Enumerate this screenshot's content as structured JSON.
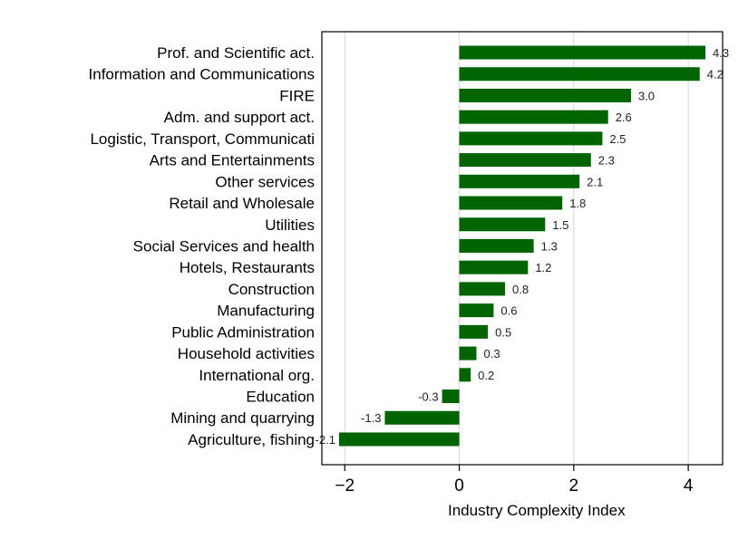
{
  "chart_data": {
    "type": "bar",
    "orientation": "horizontal",
    "title": "",
    "xlabel": "Industry Complexity Index",
    "ylabel": "",
    "xlim": [
      -2.4,
      4.6
    ],
    "xticks": [
      -2,
      0,
      2,
      4
    ],
    "grid": true,
    "bar_color": "#006400",
    "categories": [
      "Prof. and Scientific act.",
      "Information and Communications",
      "FIRE",
      "Adm. and support act.",
      "Logistic, Transport, Communicati",
      "Arts and Entertainments",
      "Other services",
      "Retail and Wholesale",
      "Utilities",
      "Social Services and health",
      "Hotels, Restaurants",
      "Construction",
      "Manufacturing",
      "Public Administration",
      "Household activities",
      "International org.",
      "Education",
      "Mining and quarrying",
      "Agriculture, fishing"
    ],
    "values": [
      4.3,
      4.2,
      3.0,
      2.6,
      2.5,
      2.3,
      2.1,
      1.8,
      1.5,
      1.3,
      1.2,
      0.8,
      0.6,
      0.5,
      0.3,
      0.2,
      -0.3,
      -1.3,
      -2.1
    ],
    "value_labels": [
      "4.3",
      "4.2",
      "3.0",
      "2.6",
      "2.5",
      "2.3",
      "2.1",
      "1.8",
      "1.5",
      "1.3",
      "1.2",
      "0.8",
      "0.6",
      "0.5",
      "0.3",
      "0.2",
      "-0.3",
      "-1.3",
      "-2.1"
    ]
  }
}
